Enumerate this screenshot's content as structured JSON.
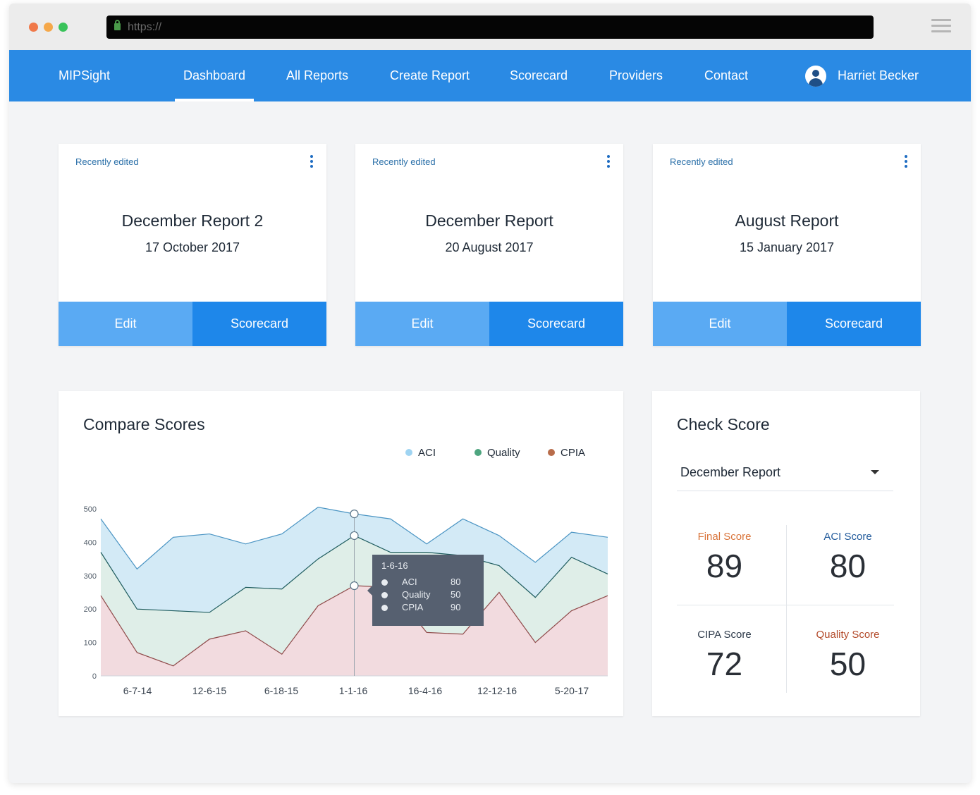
{
  "browser": {
    "url": "https://"
  },
  "nav": {
    "brand": "MIPSight",
    "items": [
      "Dashboard",
      "All Reports",
      "Create Report",
      "Scorecard",
      "Providers",
      "Contact"
    ],
    "active": "Dashboard",
    "user": "Harriet Becker"
  },
  "cards": [
    {
      "tag": "Recently edited",
      "title": "December Report 2",
      "date": "17 October 2017",
      "edit": "Edit",
      "scorecard": "Scorecard"
    },
    {
      "tag": "Recently edited",
      "title": "December Report",
      "date": "20 August 2017",
      "edit": "Edit",
      "scorecard": "Scorecard"
    },
    {
      "tag": "Recently edited",
      "title": "August Report",
      "date": "15 January 2017",
      "edit": "Edit",
      "scorecard": "Scorecard"
    }
  ],
  "compare": {
    "title": "Compare Scores",
    "tooltip": {
      "date": "1-6-16",
      "rows": [
        {
          "name": "ACI",
          "value": "80"
        },
        {
          "name": "Quality",
          "value": "50"
        },
        {
          "name": "CPIA",
          "value": "90"
        }
      ]
    }
  },
  "chart_data": {
    "type": "area",
    "title": "Compare Scores",
    "legend": "top-right",
    "ylim": [
      0,
      500
    ],
    "y_ticks": [
      0,
      100,
      200,
      300,
      400,
      500
    ],
    "x_tick_labels": [
      "6-7-14",
      "12-6-15",
      "6-18-15",
      "1-1-16",
      "16-4-16",
      "12-12-16",
      "5-20-17"
    ],
    "x": [
      0,
      0.5,
      1,
      1.5,
      2,
      2.5,
      3,
      3.5,
      4,
      4.5,
      5,
      5.5,
      6,
      6.5,
      7
    ],
    "series": [
      {
        "name": "ACI",
        "color": "#d3eaf6",
        "stroke": "#4a94c3",
        "values": [
          470,
          320,
          415,
          425,
          395,
          425,
          505,
          485,
          470,
          395,
          470,
          420,
          340,
          430,
          415
        ]
      },
      {
        "name": "Quality",
        "color": "#dfeee8",
        "stroke": "#1e5c5e",
        "values": [
          370,
          200,
          195,
          190,
          265,
          260,
          350,
          420,
          370,
          370,
          360,
          330,
          235,
          355,
          305
        ]
      },
      {
        "name": "CPIA",
        "color": "#f2dbdf",
        "stroke": "#8f4a4a",
        "values": [
          240,
          70,
          30,
          110,
          135,
          65,
          210,
          270,
          265,
          130,
          125,
          250,
          100,
          195,
          240
        ]
      }
    ]
  },
  "check": {
    "title": "Check Score",
    "selected": "December Report",
    "scores": [
      {
        "label": "Final Score",
        "value": "89",
        "color": "#d9743a"
      },
      {
        "label": "ACI Score",
        "value": "80",
        "color": "#215a9b"
      },
      {
        "label": "CIPA Score",
        "value": "72",
        "color": "#2d3a4a"
      },
      {
        "label": "Quality Score",
        "value": "50",
        "color": "#b34a2a"
      }
    ]
  }
}
